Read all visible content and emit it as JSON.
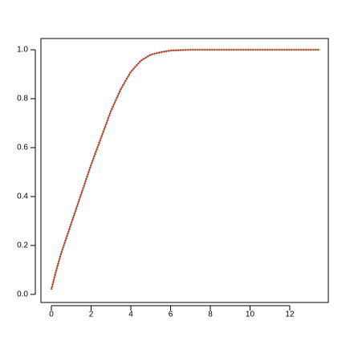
{
  "chart_data": {
    "type": "line",
    "x": [
      0,
      0.25,
      0.5,
      1,
      1.5,
      2,
      2.5,
      3,
      3.5,
      4,
      4.5,
      5,
      5.5,
      6,
      7,
      8,
      10,
      13.5
    ],
    "series": [
      {
        "color": "#2ca02c",
        "values": [
          0.02,
          0.1,
          0.17,
          0.29,
          0.41,
          0.53,
          0.64,
          0.75,
          0.84,
          0.91,
          0.955,
          0.98,
          0.99,
          0.997,
          1.0,
          1.0,
          1.0,
          1.0
        ]
      },
      {
        "color": "#d62728",
        "values": [
          0.02,
          0.1,
          0.17,
          0.29,
          0.41,
          0.53,
          0.64,
          0.75,
          0.84,
          0.91,
          0.955,
          0.98,
          0.99,
          0.997,
          1.0,
          1.0,
          1.0,
          1.0
        ]
      }
    ],
    "xlim": [
      -0.525,
      13.94
    ],
    "ylim": [
      -0.033,
      1.046
    ],
    "xticks": [
      0,
      2,
      4,
      6,
      8,
      10,
      12
    ],
    "yticks": [
      {
        "value": 0,
        "label": "0.0"
      },
      0.2,
      0.4,
      0.6,
      0.8,
      {
        "value": 1,
        "label": "1.0"
      }
    ]
  }
}
